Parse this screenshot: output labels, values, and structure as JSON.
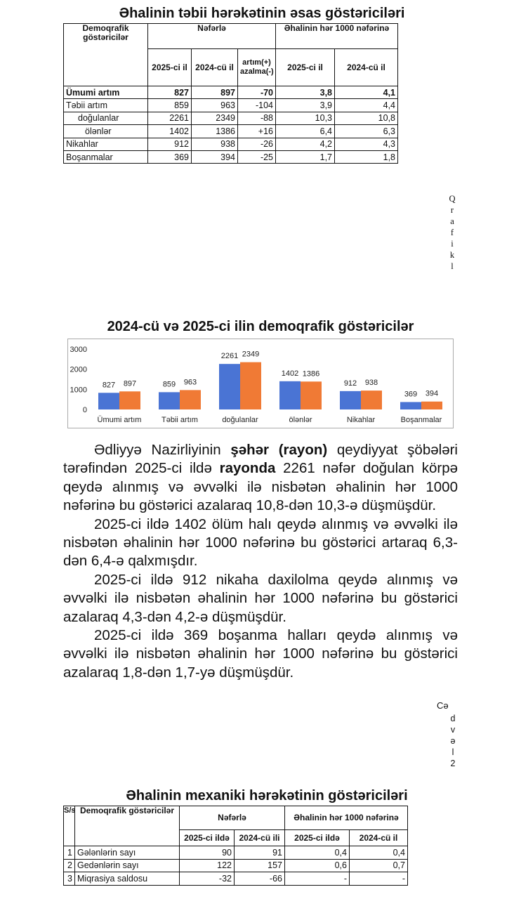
{
  "table1": {
    "title": "Əhalinin təbii hərəkətinin əsas göstəriciləri",
    "header": {
      "group": [
        "Demoqrafik göstəricilər",
        "Nəfərlə",
        "Əhalinin hər 1000 nəfərinə"
      ],
      "sub": [
        "2025-ci il",
        "2024-cü il",
        "artım(+) azalma(-)",
        "2025-ci il",
        "2024-cü il"
      ]
    },
    "rows": [
      [
        "Ümumi artım",
        "827",
        "897",
        "-70",
        "3,8",
        "4,1"
      ],
      [
        "Təbii artım",
        "859",
        "963",
        "-104",
        "3,9",
        "4,4"
      ],
      [
        "doğulanlar",
        "2261",
        "2349",
        "-88",
        "10,3",
        "10,8"
      ],
      [
        "ölənlər",
        "1402",
        "1386",
        "+16",
        "6,4",
        "6,3"
      ],
      [
        "Nikahlar",
        "912",
        "938",
        "-26",
        "4,2",
        "4,3"
      ],
      [
        "Boşanmalar",
        "369",
        "394",
        "-25",
        "1,7",
        "1,8"
      ]
    ]
  },
  "side_label1": "Qrafikl",
  "chart_data": {
    "type": "bar",
    "title": "2024-cü və 2025-ci ilin demoqrafik göstəricilər",
    "categories": [
      "Ümumi artım",
      "Təbii artım",
      "doğulanlar",
      "ölənlər",
      "Nikahlar",
      "Boşanmalar"
    ],
    "series": [
      {
        "color": "#4a74d4",
        "values": [
          827,
          859,
          2261,
          1402,
          912,
          369
        ]
      },
      {
        "color": "#f07a35",
        "values": [
          897,
          963,
          2349,
          1386,
          938,
          394
        ]
      }
    ],
    "ylim": [
      0,
      3000
    ],
    "yticks": [
      0,
      1000,
      2000,
      3000
    ],
    "grid": false
  },
  "text": {
    "paragraphs": [
      [
        "Ədliyyə Nazirliyinin ",
        "şəhər (rayon)",
        " qeydiyyat şöbələri tərəfindən 2025-ci ildə ",
        "rayonda",
        " 2261 nəfər doğulan körpə qeydə alınmış və əvvəlki ilə nisbətən əhalinin hər 1000 nəfərinə bu göstərici azalaraq 10,8-dən 10,3-ə düşmüşdür."
      ],
      "2025-ci ildə 1402 ölüm halı qeydə alınmış və əvvəlki ilə nisbətən əhalinin hər 1000 nəfərinə bu göstərici artaraq 6,3-dən 6,4-ə qalxmışdır.",
      "2025-ci ildə 912 nikaha daxilolma qeydə alınmış və əvvəlki ilə nisbətən əhalinin hər 1000 nəfərinə bu göstərici azalaraq 4,3-dən 4,2-ə düşmüşdür.",
      "2025-ci ildə 369 boşanma halları qeydə alınmış və əvvəlki ilə nisbətən əhalinin hər 1000 nəfərinə bu göstərici azalaraq 1,8-dən 1,7-yə düşmüşdür."
    ]
  },
  "side_label2": {
    "first": "Cə",
    "rest": "dvəl2"
  },
  "table2": {
    "title": "Əhalinin mexaniki hərəkətinin göstəriciləri",
    "header": {
      "group": [
        "S/s",
        "Demoqrafik göstəricilər",
        "Nəfərlə",
        "Əhalinin hər 1000 nəfərinə"
      ],
      "sub": [
        "2025-ci ildə",
        "2024-cü ili",
        "2025-ci ildə",
        "2024-cü il"
      ]
    },
    "rows": [
      [
        "1",
        "Gələnlərin sayı",
        "90",
        "91",
        "0,4",
        "0,4"
      ],
      [
        "2",
        "Gedənlərin sayı",
        "122",
        "157",
        "0,6",
        "0,7"
      ],
      [
        "3",
        "Miqrasiya saldosu",
        "-32",
        "-66",
        "-",
        "-"
      ]
    ]
  }
}
